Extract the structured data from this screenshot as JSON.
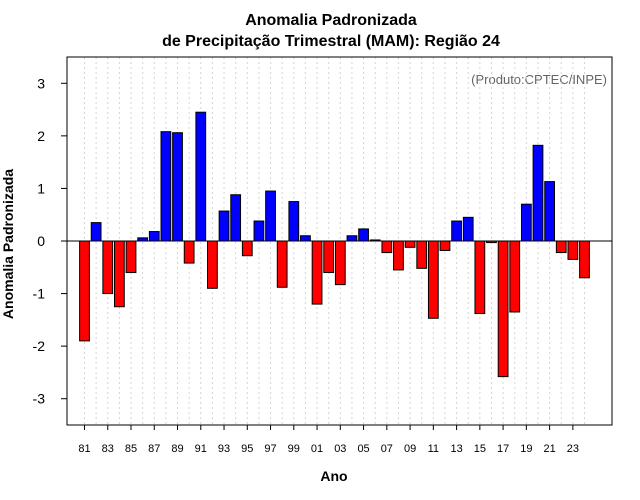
{
  "chart_data": {
    "type": "bar",
    "title": "Anomalia Padronizada",
    "subtitle": "de Precipitação Trimestral (MAM): Região 24",
    "xlabel": "Ano",
    "ylabel": "Anomalia Padronizada",
    "credit": "(Produto:CPTEC/INPE)",
    "ylim": [
      -3.5,
      3.5
    ],
    "yticks": [
      -3,
      -2,
      -1,
      0,
      1,
      2,
      3
    ],
    "positive_color": "#0000ff",
    "negative_color": "#ff0000",
    "categories": [
      "81",
      "82",
      "83",
      "84",
      "85",
      "86",
      "87",
      "88",
      "89",
      "90",
      "91",
      "92",
      "93",
      "94",
      "95",
      "96",
      "97",
      "98",
      "99",
      "00",
      "01",
      "02",
      "03",
      "04",
      "05",
      "06",
      "07",
      "08",
      "09",
      "10",
      "11",
      "12",
      "13",
      "14",
      "15",
      "16",
      "17",
      "18",
      "19",
      "20",
      "21",
      "22",
      "23",
      "24"
    ],
    "xtick_labels": [
      "81",
      "83",
      "85",
      "87",
      "89",
      "91",
      "93",
      "95",
      "97",
      "99",
      "01",
      "03",
      "05",
      "07",
      "09",
      "11",
      "13",
      "15",
      "17",
      "19",
      "21",
      "23"
    ],
    "values": [
      -1.9,
      0.35,
      -1.0,
      -1.25,
      -0.6,
      0.06,
      0.18,
      2.08,
      2.06,
      -0.42,
      2.45,
      -0.9,
      0.57,
      0.88,
      -0.28,
      0.38,
      0.95,
      -0.88,
      0.75,
      0.1,
      -1.2,
      -0.6,
      -0.83,
      0.1,
      0.23,
      0.02,
      -0.22,
      -0.55,
      -0.12,
      -0.52,
      -1.47,
      -0.18,
      0.38,
      0.45,
      -1.38,
      -0.03,
      -2.58,
      -1.35,
      0.7,
      1.82,
      1.13,
      -0.22,
      -0.35,
      -0.7
    ]
  }
}
